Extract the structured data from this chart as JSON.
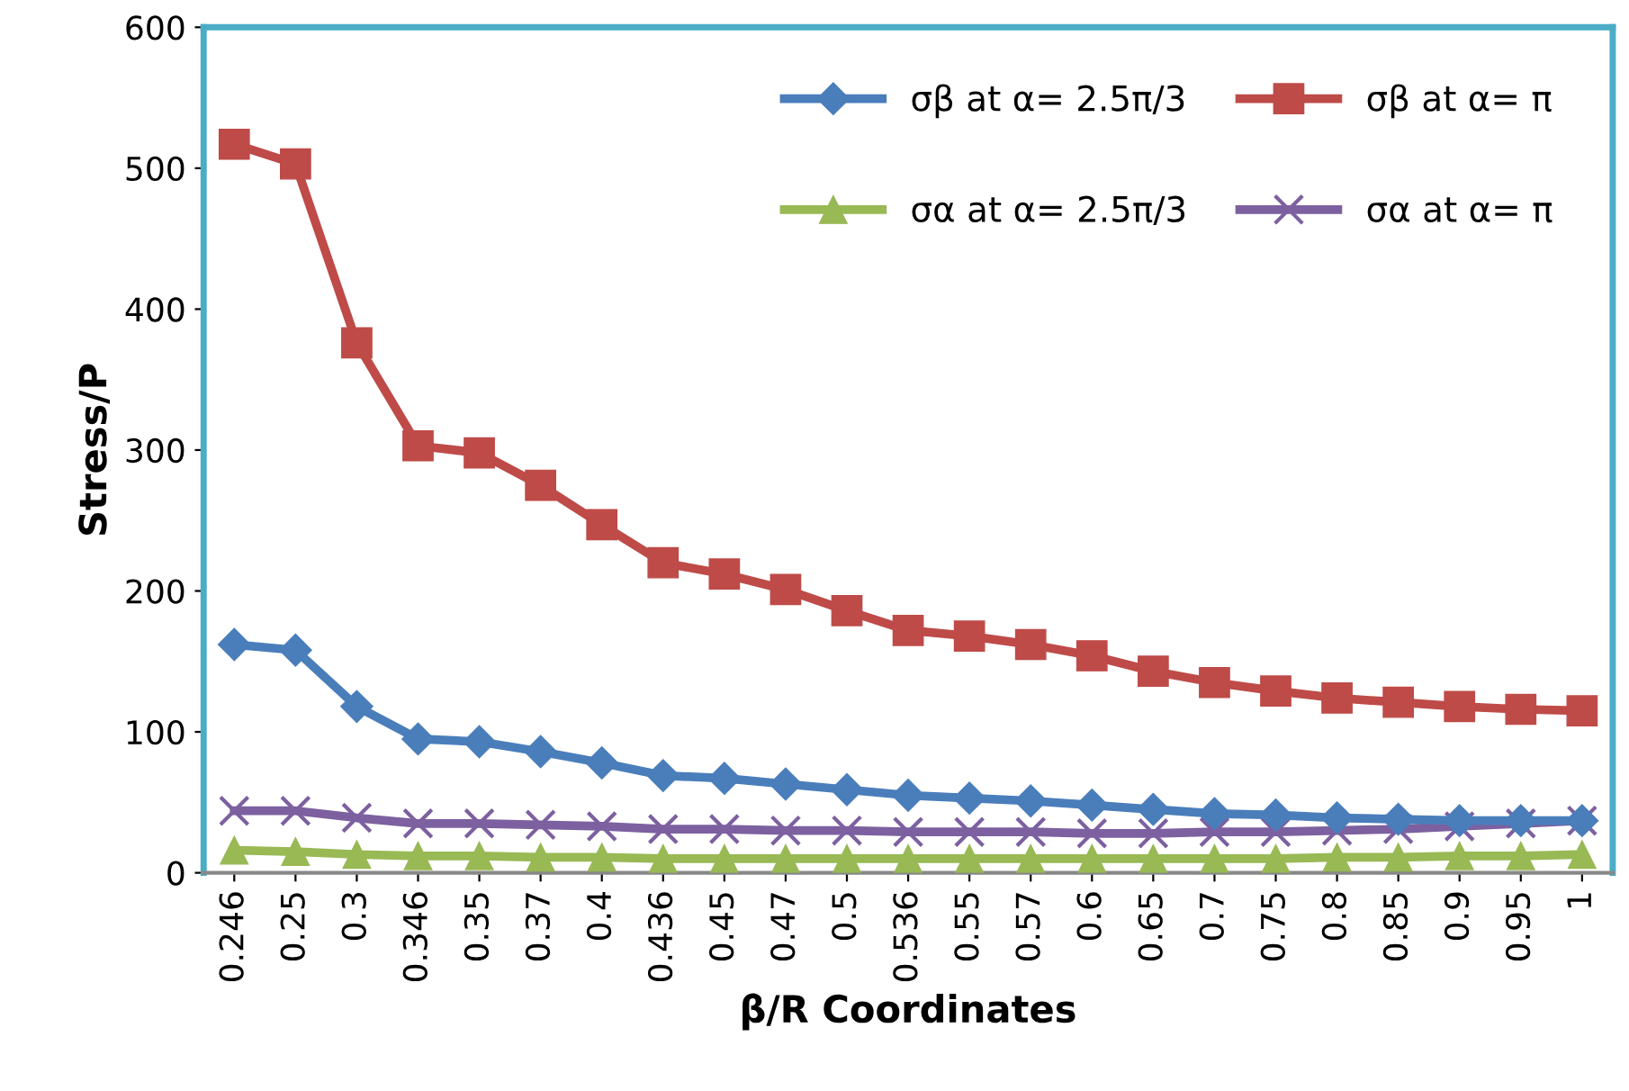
{
  "chart_data": {
    "type": "line",
    "xlabel": "β/R Coordinates",
    "ylabel": "Stress/P",
    "categories": [
      "0.246",
      "0.25",
      "0.3",
      "0.346",
      "0.35",
      "0.37",
      "0.4",
      "0.436",
      "0.45",
      "0.47",
      "0.5",
      "0.536",
      "0.55",
      "0.57",
      "0.6",
      "0.65",
      "0.7",
      "0.75",
      "0.8",
      "0.85",
      "0.9",
      "0.95",
      "1"
    ],
    "series": [
      {
        "name": "σβ at α= 2.5π/3",
        "color": "#4a7ebb",
        "marker": "diamond",
        "values": [
          162,
          158,
          118,
          95,
          93,
          86,
          78,
          69,
          67,
          63,
          59,
          55,
          53,
          51,
          48,
          45,
          42,
          41,
          39,
          38,
          37,
          37,
          37
        ]
      },
      {
        "name": "σβ at α= π",
        "color": "#be4b48",
        "marker": "square",
        "values": [
          517,
          503,
          376,
          303,
          298,
          275,
          247,
          220,
          212,
          201,
          186,
          172,
          168,
          162,
          154,
          143,
          135,
          129,
          124,
          121,
          118,
          116,
          115
        ]
      },
      {
        "name": "σα at α= 2.5π/3",
        "color": "#98b954",
        "marker": "triangle",
        "values": [
          16,
          15,
          13,
          12,
          12,
          11,
          11,
          10,
          10,
          10,
          10,
          10,
          10,
          10,
          10,
          10,
          10,
          10,
          11,
          11,
          12,
          12,
          13
        ]
      },
      {
        "name": "σα at α= π",
        "color": "#7d60a0",
        "marker": "cross",
        "values": [
          44,
          44,
          39,
          35,
          35,
          34,
          33,
          31,
          31,
          30,
          30,
          29,
          29,
          29,
          28,
          28,
          29,
          29,
          30,
          31,
          33,
          35,
          37
        ]
      }
    ],
    "ylim": [
      0,
      600
    ],
    "yticks": [
      0,
      100,
      200,
      300,
      400,
      500,
      600
    ],
    "grid": false,
    "legend": "top right",
    "line_style": "solid"
  }
}
